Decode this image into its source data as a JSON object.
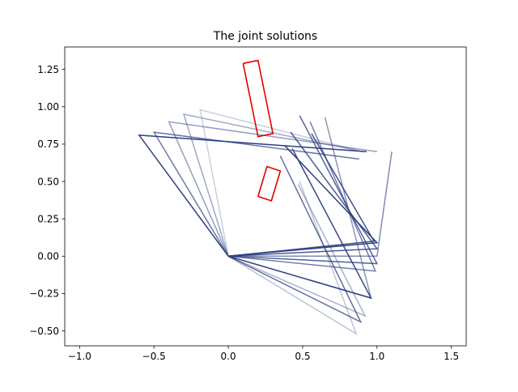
{
  "chart_data": {
    "type": "line",
    "title": "The joint solutions",
    "xlabel": "",
    "ylabel": "",
    "xlim": [
      -1.1,
      1.6
    ],
    "ylim": [
      -0.6,
      1.4
    ],
    "xticks": [
      -1.0,
      -0.5,
      0.0,
      0.5,
      1.0,
      1.5
    ],
    "xtick_labels": [
      "−1.0",
      "−0.5",
      "0.0",
      "0.5",
      "1.0",
      "1.5"
    ],
    "yticks": [
      -0.5,
      -0.25,
      0.0,
      0.25,
      0.5,
      0.75,
      1.0,
      1.25
    ],
    "ytick_labels": [
      "−0.50",
      "−0.25",
      "0.00",
      "0.25",
      "0.50",
      "0.75",
      "1.00",
      "1.25"
    ],
    "grid": false,
    "colors": {
      "arm": "#2c3e7f",
      "obstacle": "#e00000"
    },
    "series": [
      {
        "opacity": 0.25,
        "points": [
          [
            0,
            0
          ],
          [
            -0.19,
            0.98
          ],
          [
            0.9,
            0.7
          ]
        ]
      },
      {
        "opacity": 0.3,
        "points": [
          [
            0,
            0
          ],
          [
            0.86,
            -0.52
          ],
          [
            0.48,
            0.5
          ]
        ]
      },
      {
        "opacity": 0.4,
        "points": [
          [
            0,
            0
          ],
          [
            0.92,
            -0.4
          ],
          [
            0.47,
            0.48
          ]
        ]
      },
      {
        "opacity": 0.45,
        "points": [
          [
            0,
            0
          ],
          [
            -0.3,
            0.95
          ],
          [
            0.9,
            0.7
          ]
        ]
      },
      {
        "opacity": 0.5,
        "points": [
          [
            0,
            0
          ],
          [
            -0.4,
            0.9
          ],
          [
            1.0,
            0.7
          ]
        ]
      },
      {
        "opacity": 0.55,
        "points": [
          [
            0,
            0
          ],
          [
            0.96,
            -0.28
          ],
          [
            0.65,
            0.93
          ]
        ]
      },
      {
        "opacity": 0.6,
        "points": [
          [
            0,
            0
          ],
          [
            1.0,
            0.0
          ],
          [
            1.1,
            0.7
          ]
        ]
      },
      {
        "opacity": 0.65,
        "points": [
          [
            0,
            0
          ],
          [
            0.99,
            -0.1
          ],
          [
            0.55,
            0.9
          ]
        ]
      },
      {
        "opacity": 0.7,
        "points": [
          [
            0,
            0
          ],
          [
            -0.5,
            0.83
          ],
          [
            0.88,
            0.65
          ]
        ]
      },
      {
        "opacity": 0.75,
        "points": [
          [
            0,
            0
          ],
          [
            0.89,
            -0.44
          ],
          [
            0.35,
            0.67
          ]
        ]
      },
      {
        "opacity": 0.8,
        "points": [
          [
            0,
            0
          ],
          [
            1.0,
            -0.05
          ],
          [
            0.48,
            0.94
          ]
        ]
      },
      {
        "opacity": 0.85,
        "points": [
          [
            0,
            0
          ],
          [
            1.0,
            0.05
          ],
          [
            0.42,
            0.83
          ]
        ]
      },
      {
        "opacity": 0.9,
        "points": [
          [
            0,
            0
          ],
          [
            0.98,
            0.1
          ],
          [
            0.56,
            0.82
          ]
        ]
      },
      {
        "opacity": 0.95,
        "points": [
          [
            0,
            0
          ],
          [
            0.96,
            -0.28
          ],
          [
            0.43,
            0.72
          ]
        ]
      },
      {
        "opacity": 1.0,
        "points": [
          [
            0,
            0
          ],
          [
            -0.6,
            0.81
          ],
          [
            0.93,
            0.7
          ]
        ]
      },
      {
        "opacity": 1.0,
        "points": [
          [
            0,
            0
          ],
          [
            1.0,
            0.09
          ],
          [
            0.38,
            0.74
          ]
        ]
      }
    ],
    "obstacles": [
      {
        "points": [
          [
            0.1,
            1.29
          ],
          [
            0.2,
            1.31
          ],
          [
            0.3,
            0.82
          ],
          [
            0.2,
            0.8
          ],
          [
            0.1,
            1.29
          ]
        ]
      },
      {
        "points": [
          [
            0.2,
            0.4
          ],
          [
            0.29,
            0.37
          ],
          [
            0.35,
            0.57
          ],
          [
            0.26,
            0.6
          ],
          [
            0.2,
            0.4
          ]
        ]
      }
    ]
  }
}
